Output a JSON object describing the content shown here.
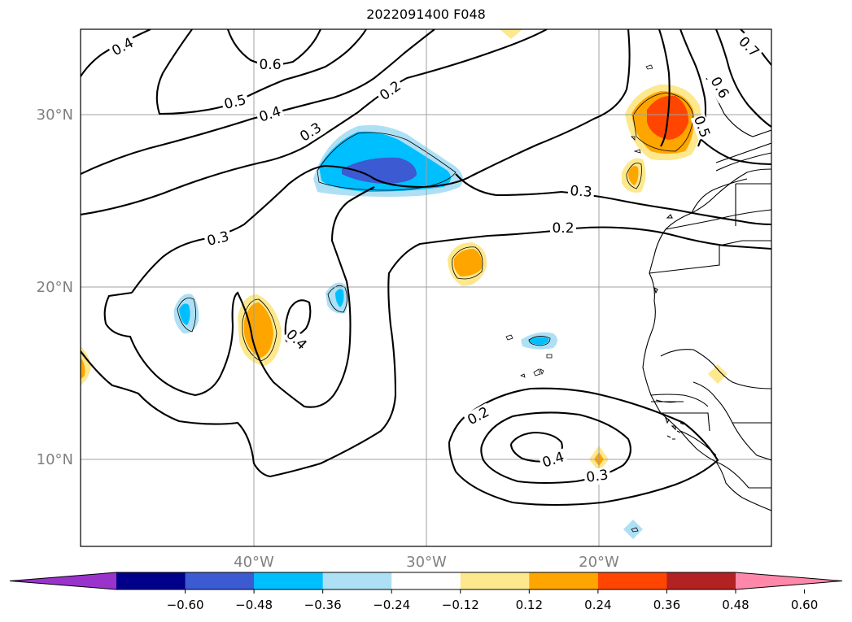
{
  "title": "2022091400 F048",
  "lat_labels": [
    "30°N",
    "20°N",
    "10°N"
  ],
  "lon_labels": [
    "40°W",
    "30°W",
    "20°W"
  ],
  "contour_labels": [
    "0.4",
    "0.6",
    "0.5",
    "0.4",
    "0.3",
    "0.2",
    "0.7",
    "0.6",
    "0.5",
    "0.3",
    "0.2",
    "0.3",
    "0.4",
    "0.2",
    "0.4",
    "0.3"
  ],
  "colorbar": {
    "ticks": [
      "−0.60",
      "−0.48",
      "−0.36",
      "−0.24",
      "−0.12",
      "0.12",
      "0.24",
      "0.36",
      "0.48",
      "0.60"
    ],
    "colors": [
      "#9933cc",
      "#00008b",
      "#3c5ad2",
      "#00bfff",
      "#aee0f5",
      "#ffffff",
      "#fde88d",
      "#ffa500",
      "#ff4500",
      "#b22222",
      "#ff88aa"
    ]
  },
  "fill_colors": {
    "light_blue": "#aee0f5",
    "blue": "#00bfff",
    "dark_blue": "#3c5ad2",
    "yellow": "#fde88d",
    "orange": "#ffa500",
    "red_orange": "#ff4500"
  }
}
